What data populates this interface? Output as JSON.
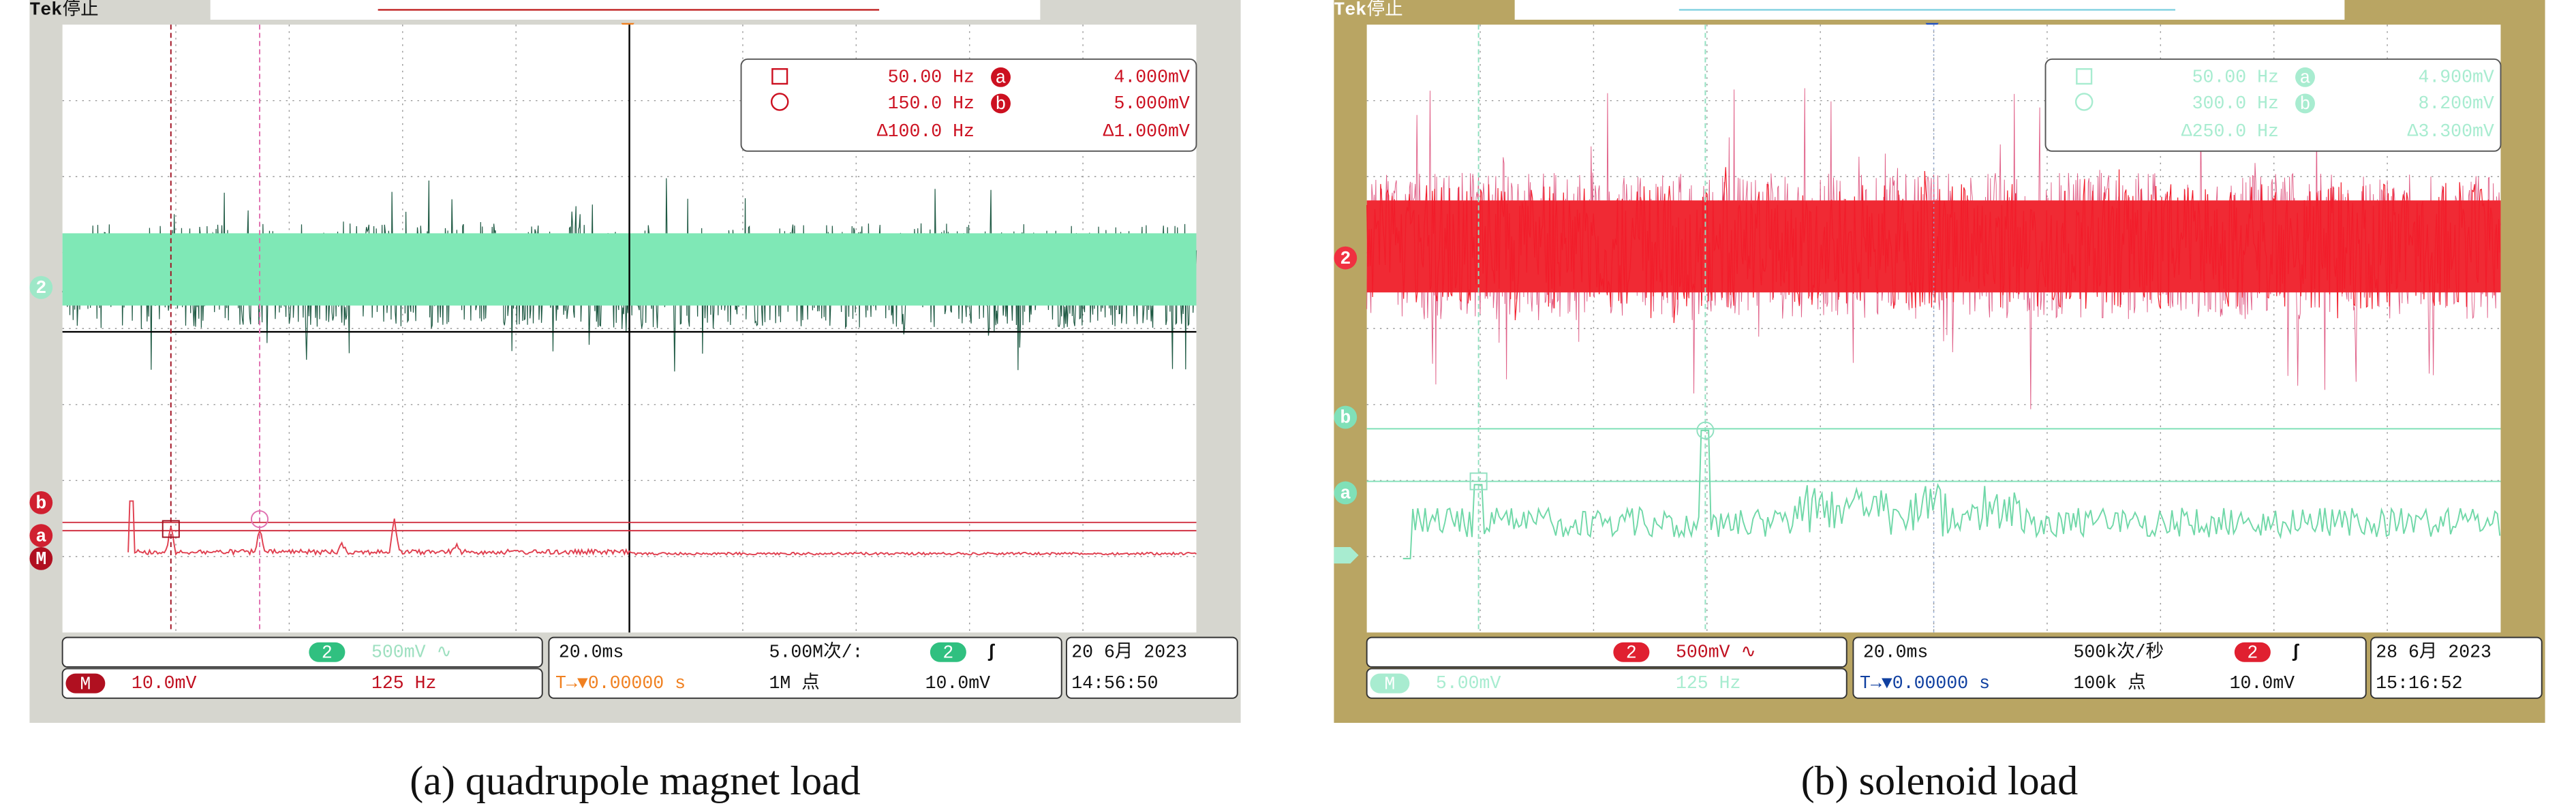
{
  "panels": [
    {
      "header": {
        "brand": "Tek",
        "status": "停止"
      },
      "channel_label": "2",
      "math_label": "M",
      "cursor_labels": [
        "a",
        "b"
      ],
      "readout": {
        "freq1": "50.00 Hz",
        "volt1": "4.000mV",
        "freq2": "150.0 Hz",
        "volt2": "5.000mV",
        "dfreq": "Δ100.0 Hz",
        "dvolt": "Δ1.000mV"
      },
      "status_bar": {
        "ch_scale": "500mV ∿",
        "math_scale": "10.0mV",
        "math_freq": "125 Hz",
        "timebase": "20.0ms",
        "trigger_pos": "T→▼0.00000 s",
        "sample_rate": "5.00M次/:",
        "record_length": "1M 点",
        "trig_slope": "ʃ",
        "trig_level": "10.0mV",
        "date": "20 6月  2023",
        "time": "14:56:50"
      },
      "caption": "(a) quadrupole magnet load"
    },
    {
      "header": {
        "brand": "Tek",
        "status": "停止"
      },
      "channel_label": "2",
      "math_label": "M",
      "cursor_labels": [
        "a",
        "b"
      ],
      "readout": {
        "freq1": "50.00 Hz",
        "volt1": "4.900mV",
        "freq2": "300.0 Hz",
        "volt2": "8.200mV",
        "dfreq": "Δ250.0 Hz",
        "dvolt": "Δ3.300mV"
      },
      "status_bar": {
        "ch_scale": "500mV ∿",
        "math_scale": "5.00mV",
        "math_freq": "125 Hz",
        "timebase": "20.0ms",
        "trigger_pos": "T→▼0.00000 s",
        "sample_rate": "500k次/秒",
        "record_length": "100k 点",
        "trig_slope": "ʃ",
        "trig_level": "10.0mV",
        "date": "28 6月  2023",
        "time": "15:16:52"
      },
      "caption": "(b) solenoid load"
    }
  ]
}
